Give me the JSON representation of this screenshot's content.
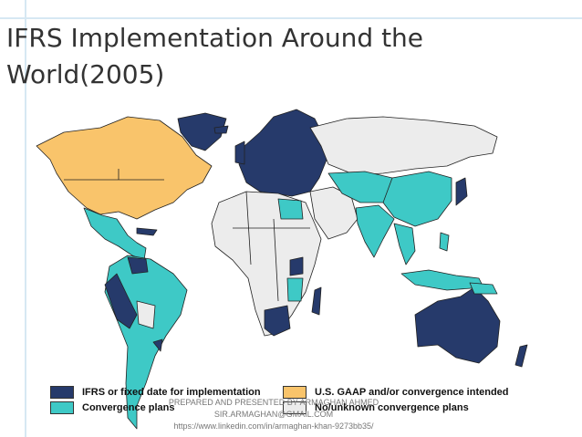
{
  "title": "IFRS Implementation Around the World(2005)",
  "legend": [
    {
      "label": "IFRS or fixed date for implementation",
      "color": "#263a6b"
    },
    {
      "label": "U.S. GAAP and/or convergence intended",
      "color": "#f9c46b"
    },
    {
      "label": "Convergence plans",
      "color": "#3ec9c6"
    },
    {
      "label": "No/unknown convergence plans",
      "color": "#ececec"
    }
  ],
  "footer": [
    "PREPARED AND PRESENTED BY ARMAGHAN AHMED",
    "SIR.ARMAGHAN@GMAIL.COM",
    "https://www.linkedin.com/in/armaghan-khan-9273bb35/"
  ]
}
